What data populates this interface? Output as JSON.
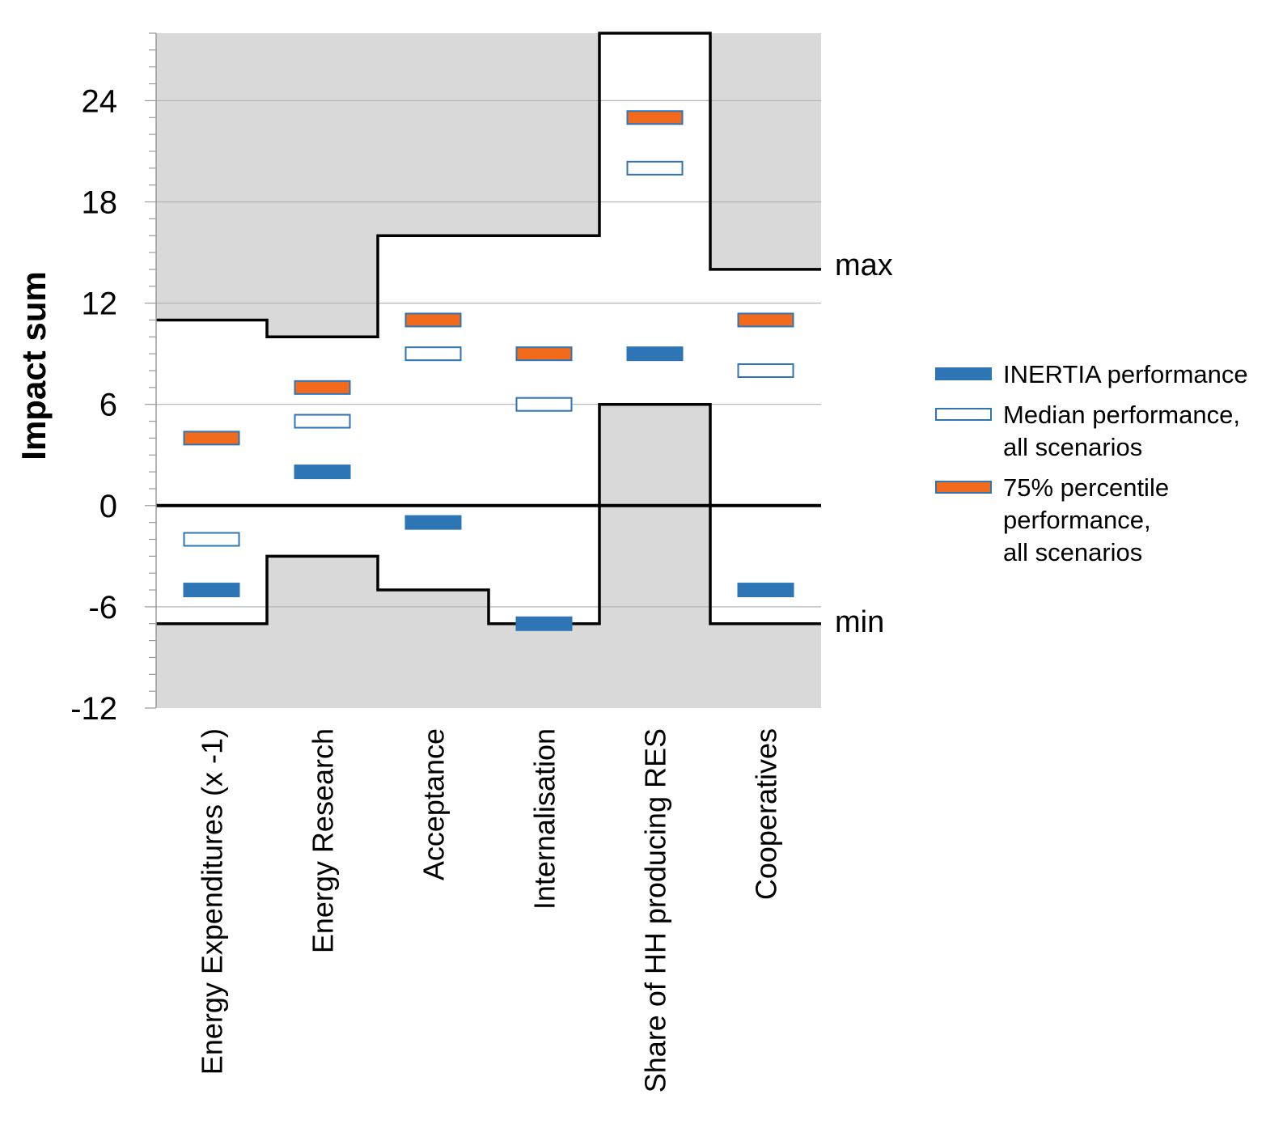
{
  "chart_data": {
    "type": "range-marker",
    "title": "",
    "ylabel": "Impact sum",
    "xlabel": "",
    "ylim": [
      -12,
      28
    ],
    "yticks": [
      "24",
      "18",
      "12",
      "6",
      "0",
      "-6",
      "-12"
    ],
    "ytick_values": [
      24,
      18,
      12,
      6,
      0,
      -6,
      -12
    ],
    "grid": true,
    "categories": [
      "Energy Expenditures (x -1)",
      "Energy Research",
      "Acceptance",
      "Internalisation",
      "Share of HH producing RES",
      "Cooperatives"
    ],
    "max": [
      11,
      10,
      16,
      16,
      28,
      14
    ],
    "min": [
      -7,
      -3,
      -5,
      -7,
      6,
      -7
    ],
    "series": [
      {
        "name": "INERTIA performance",
        "values": [
          -5,
          2,
          -1,
          -7,
          9,
          -5
        ]
      },
      {
        "name": "Median performance, all scenarios",
        "values": [
          -2,
          5,
          9,
          6,
          20,
          8
        ]
      },
      {
        "name": "75% percentile performance, all scenarios",
        "values": [
          4,
          7,
          11,
          9,
          23,
          11
        ]
      }
    ],
    "annotations": {
      "max": "max",
      "min": "min"
    },
    "legend": [
      {
        "lines": [
          "INERTIA performance"
        ],
        "color": "#2e75b6",
        "style": "filled"
      },
      {
        "lines": [
          "Median performance,",
          "all scenarios"
        ],
        "color": "#2e75b6",
        "style": "outline"
      },
      {
        "lines": [
          "75% percentile",
          "performance,",
          "all scenarios"
        ],
        "color": "#f26b1d",
        "style": "filled-orange"
      }
    ],
    "colors": {
      "inertia": "#2e75b6",
      "median": "#2e75b6",
      "p75": "#f26b1d",
      "p75_border": "#2e75b6",
      "shade": "#d9d9d9"
    }
  }
}
